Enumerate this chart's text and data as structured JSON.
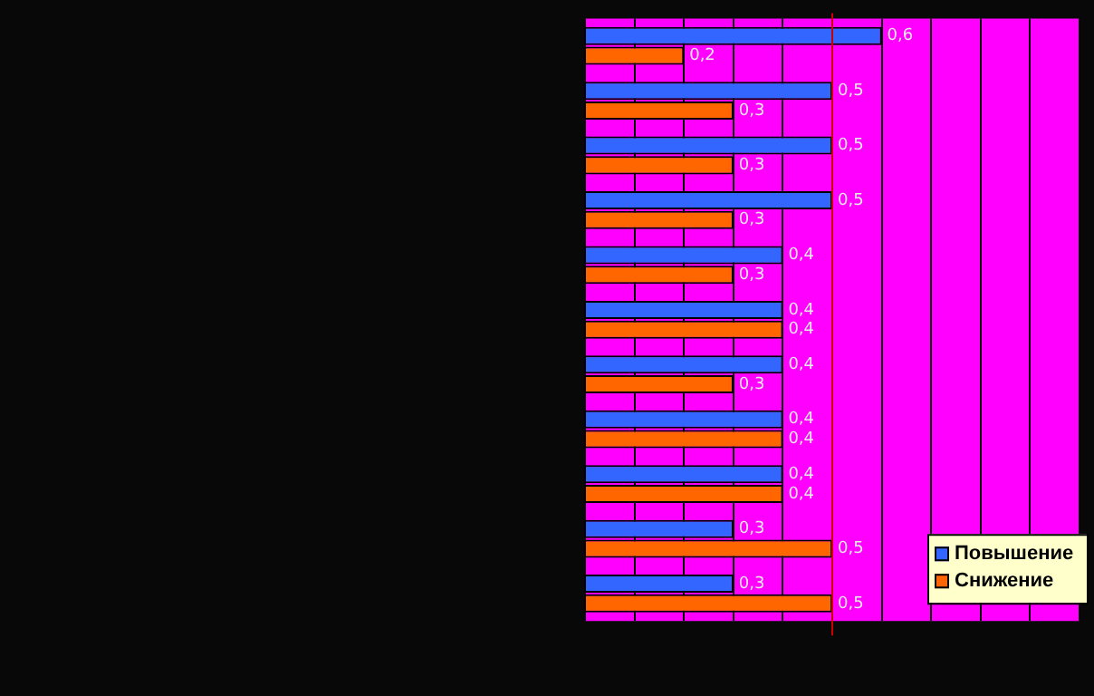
{
  "chart_data": {
    "type": "bar",
    "orientation": "horizontal",
    "categories": [
      null,
      null,
      null,
      null,
      null,
      null,
      null,
      null,
      null,
      null,
      null
    ],
    "series": [
      {
        "name": "Повышение",
        "color": "#3366ff",
        "values": [
          0.6,
          0.5,
          0.5,
          0.5,
          0.4,
          0.4,
          0.4,
          0.4,
          0.4,
          0.3,
          0.3
        ],
        "value_labels": [
          "0,6",
          "0,5",
          "0,5",
          "0,5",
          "0,4",
          "0,4",
          "0,4",
          "0,4",
          "0,4",
          "0,3",
          "0,3"
        ]
      },
      {
        "name": "Снижение",
        "color": "#ff6600",
        "values": [
          0.2,
          0.3,
          0.3,
          0.3,
          0.3,
          0.4,
          0.3,
          0.4,
          0.4,
          0.5,
          0.5
        ],
        "value_labels": [
          "0,2",
          "0,3",
          "0,3",
          "0,3",
          "0,3",
          "0,4",
          "0,3",
          "0,4",
          "0,4",
          "0,5",
          "0,5"
        ]
      }
    ],
    "xlim": [
      0,
      1
    ],
    "xticks": [
      {
        "value": 0,
        "label": null
      },
      {
        "value": 0.1,
        "label": null
      },
      {
        "value": 0.2,
        "label": null
      },
      {
        "value": 0.3,
        "label": null
      },
      {
        "value": 0.4,
        "label": null
      },
      {
        "value": 0.5,
        "label": null
      },
      {
        "value": 0.6,
        "label": null
      },
      {
        "value": 0.7,
        "label": null
      },
      {
        "value": 0.8,
        "label": null
      },
      {
        "value": 0.9,
        "label": null
      },
      {
        "value": 1,
        "label": null
      }
    ],
    "ref_lines": [
      {
        "axis": "x",
        "value": 0.5,
        "color": "#cc0000"
      }
    ],
    "grid": "x",
    "legend": "bottom right"
  }
}
